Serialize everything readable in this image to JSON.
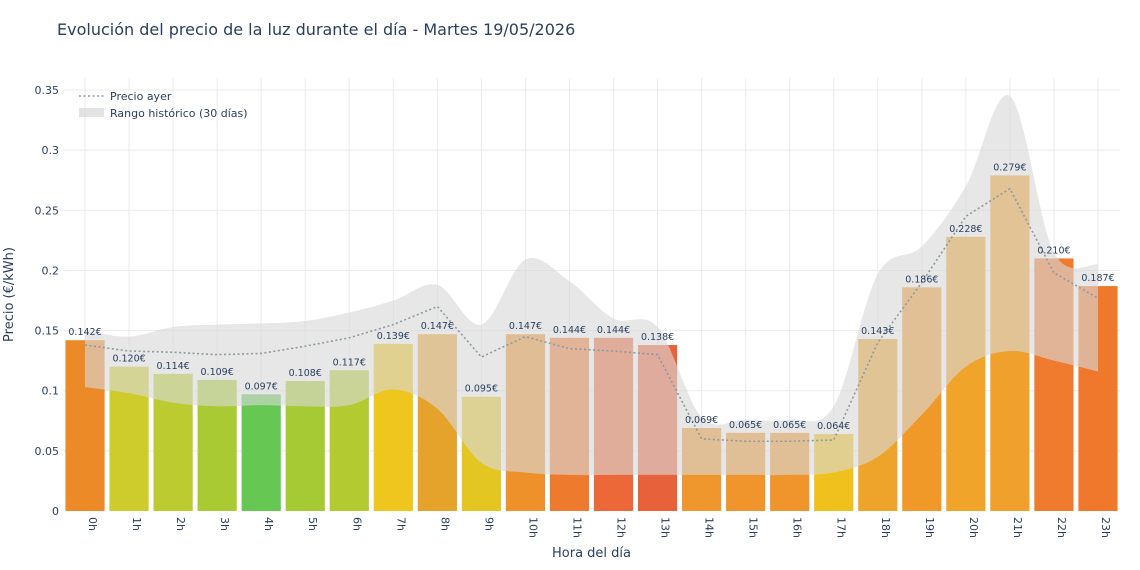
{
  "chart_title": "Evolución del precio de la luz durante el día - Martes 19/05/2026",
  "chart_data": {
    "type": "bar",
    "title": "Evolución del precio de la luz durante el día - Martes 19/05/2026",
    "xlabel": "Hora del día",
    "ylabel": "Precio (€/kWh)",
    "ylim": [
      0,
      0.36
    ],
    "yticks": [
      0,
      0.05,
      0.1,
      0.15,
      0.2,
      0.25,
      0.3,
      0.35
    ],
    "ytick_labels": [
      "0",
      "0.05",
      "0.1",
      "0.15",
      "0.2",
      "0.25",
      "0.3",
      "0.35"
    ],
    "grid": true,
    "legend_position": "top-left",
    "categories": [
      "0h",
      "1h",
      "2h",
      "3h",
      "4h",
      "5h",
      "6h",
      "7h",
      "8h",
      "9h",
      "10h",
      "11h",
      "12h",
      "13h",
      "14h",
      "15h",
      "16h",
      "17h",
      "18h",
      "19h",
      "20h",
      "21h",
      "22h",
      "23h"
    ],
    "series": [
      {
        "type": "bar",
        "values": [
          0.142,
          0.12,
          0.114,
          0.109,
          0.097,
          0.108,
          0.117,
          0.139,
          0.147,
          0.095,
          0.147,
          0.144,
          0.144,
          0.138,
          0.069,
          0.065,
          0.065,
          0.064,
          0.143,
          0.186,
          0.228,
          0.279,
          0.21,
          0.187
        ],
        "data_labels": [
          "0.142€",
          "0.120€",
          "0.114€",
          "0.109€",
          "0.097€",
          "0.108€",
          "0.117€",
          "0.139€",
          "0.147€",
          "0.095€",
          "0.147€",
          "0.144€",
          "0.144€",
          "0.138€",
          "0.069€",
          "0.065€",
          "0.065€",
          "0.064€",
          "0.143€",
          "0.186€",
          "0.228€",
          "0.279€",
          "0.210€",
          "0.187€"
        ],
        "colors": [
          "#ec8a28",
          "#cdcc2c",
          "#bccc30",
          "#a9ca33",
          "#66c852",
          "#a6ca33",
          "#b3ca30",
          "#eec61d",
          "#e6a32c",
          "#e4c623",
          "#ef912a",
          "#ee7a2e",
          "#ec6838",
          "#e7623a",
          "#ef962c",
          "#f0952c",
          "#f0952c",
          "#f0c11c",
          "#eea42a",
          "#f09828",
          "#f0a42a",
          "#f0a02c",
          "#f07a2e",
          "#f0782c"
        ]
      },
      {
        "name": "Precio ayer",
        "type": "line",
        "style": "dotted",
        "color": "#8c9aa0",
        "values": [
          0.138,
          0.133,
          0.132,
          0.13,
          0.131,
          0.137,
          0.144,
          0.155,
          0.17,
          0.128,
          0.145,
          0.135,
          0.133,
          0.13,
          0.06,
          0.058,
          0.058,
          0.059,
          0.14,
          0.19,
          0.245,
          0.268,
          0.198,
          0.177
        ]
      },
      {
        "name": "Rango histórico (30 días)",
        "type": "band",
        "color": "#d9d9d9",
        "upper": [
          0.15,
          0.145,
          0.153,
          0.155,
          0.156,
          0.158,
          0.165,
          0.175,
          0.188,
          0.155,
          0.209,
          0.191,
          0.16,
          0.153,
          0.078,
          0.076,
          0.076,
          0.087,
          0.197,
          0.22,
          0.27,
          0.345,
          0.215,
          0.205
        ],
        "lower": [
          0.103,
          0.098,
          0.09,
          0.087,
          0.088,
          0.087,
          0.088,
          0.101,
          0.085,
          0.04,
          0.032,
          0.03,
          0.03,
          0.03,
          0.03,
          0.03,
          0.03,
          0.032,
          0.045,
          0.08,
          0.12,
          0.133,
          0.125,
          0.116
        ]
      }
    ]
  }
}
